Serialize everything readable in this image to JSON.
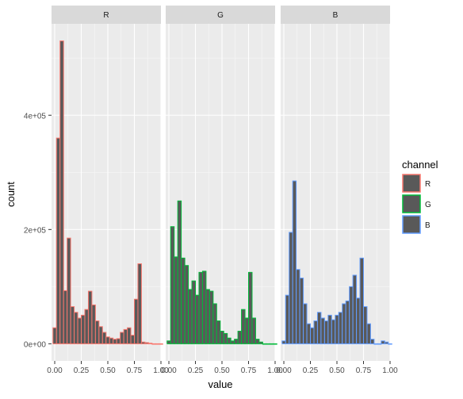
{
  "chart_data": {
    "type": "bar",
    "subtype": "faceted-histogram",
    "xlabel": "value",
    "ylabel": "count",
    "xlim": [
      -0.03,
      1.0
    ],
    "ylim": [
      -30000,
      560000
    ],
    "x_ticks": [
      0.0,
      0.25,
      0.5,
      0.75,
      1.0
    ],
    "x_tick_labels": [
      "0.00",
      "0.25",
      "0.50",
      "0.75",
      "1.00"
    ],
    "y_ticks": [
      0,
      200000,
      400000
    ],
    "y_tick_labels": [
      "0e+00",
      "2e+05",
      "4e+05"
    ],
    "bin_width": 0.0333,
    "bin_centers": [
      0.0,
      0.0333,
      0.0667,
      0.1,
      0.1333,
      0.1667,
      0.2,
      0.2333,
      0.2667,
      0.3,
      0.3333,
      0.3667,
      0.4,
      0.4333,
      0.4667,
      0.5,
      0.5333,
      0.5667,
      0.6,
      0.6333,
      0.6667,
      0.7,
      0.7333,
      0.7667,
      0.8,
      0.8333,
      0.8667,
      0.9,
      0.9333,
      0.9667,
      1.0
    ],
    "legend": {
      "title": "channel",
      "position": "right",
      "entries": [
        {
          "label": "R",
          "color": "#F8766D"
        },
        {
          "label": "G",
          "color": "#00BA38"
        },
        {
          "label": "B",
          "color": "#619CFF"
        }
      ]
    },
    "bar_fill": "#595959",
    "grid": true,
    "series": [
      {
        "name": "R",
        "color": "#F8766D",
        "values": [
          28000,
          360000,
          530000,
          93000,
          185000,
          65000,
          55000,
          45000,
          50000,
          60000,
          92000,
          68000,
          40000,
          30000,
          20000,
          12000,
          10000,
          8000,
          9000,
          20000,
          25000,
          28000,
          15000,
          78000,
          140000,
          3000,
          2000,
          1000,
          0,
          0,
          0
        ]
      },
      {
        "name": "G",
        "color": "#00BA38",
        "values": [
          5000,
          205000,
          152000,
          250000,
          150000,
          137000,
          95000,
          110000,
          85000,
          125000,
          127000,
          95000,
          92000,
          70000,
          40000,
          22000,
          18000,
          10000,
          5000,
          8000,
          22000,
          60000,
          45000,
          125000,
          45000,
          8000,
          3000,
          0,
          0,
          0,
          0
        ]
      },
      {
        "name": "B",
        "color": "#619CFF",
        "values": [
          5000,
          85000,
          195000,
          285000,
          130000,
          115000,
          70000,
          35000,
          28000,
          40000,
          55000,
          45000,
          40000,
          50000,
          42000,
          50000,
          55000,
          70000,
          75000,
          100000,
          120000,
          80000,
          150000,
          65000,
          35000,
          8000,
          0,
          0,
          5000,
          3000,
          0
        ]
      }
    ]
  }
}
